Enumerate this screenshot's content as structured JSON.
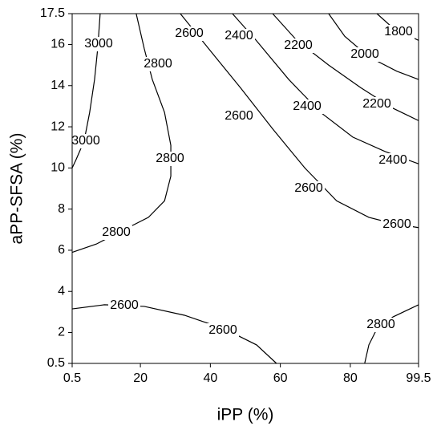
{
  "chart_data": {
    "type": "contour",
    "x_label": "iPP (%)",
    "y_label": "aPP-SFSA (%)",
    "xlim": [
      0.5,
      99.5
    ],
    "ylim": [
      0.5,
      17.5
    ],
    "xticks": [
      0.5,
      20,
      40,
      60,
      80,
      99.5
    ],
    "yticks": [
      0.5,
      2,
      4,
      6,
      8,
      10,
      12,
      14,
      16,
      17.5
    ],
    "color": "#000000",
    "contours": [
      {
        "level": 3000,
        "x": [
          8.5,
          7.8,
          6.9,
          5.5,
          3.9,
          1.6,
          0.5
        ],
        "y": [
          17.5,
          15.8,
          14.3,
          12.7,
          11.3,
          10.4,
          10.0
        ]
      },
      {
        "level": 2800,
        "x": [
          18.8,
          21.1,
          23.4,
          26.9,
          28.7,
          28.7,
          26.9,
          22.3,
          14.2,
          7.4,
          0.5
        ],
        "y": [
          17.5,
          15.8,
          14.3,
          12.7,
          11.1,
          9.6,
          8.4,
          7.6,
          6.9,
          6.3,
          5.9
        ]
      },
      {
        "level": 2600,
        "x": [
          31.4,
          39.5,
          48.6,
          57.8,
          67.0,
          76.1,
          85.3,
          92.2,
          99.5
        ],
        "y": [
          17.5,
          15.8,
          13.9,
          11.9,
          10.0,
          8.4,
          7.6,
          7.3,
          7.1
        ]
      },
      {
        "level": 2400,
        "x": [
          46.3,
          53.1,
          62.4,
          71.5,
          80.7,
          89.9,
          99.5
        ],
        "y": [
          17.5,
          16.2,
          14.3,
          12.7,
          11.5,
          10.8,
          10.2
        ]
      },
      {
        "level": 2200,
        "x": [
          57.8,
          64.7,
          73.8,
          83.0,
          92.2,
          99.5
        ],
        "y": [
          17.5,
          16.2,
          15.0,
          13.9,
          12.9,
          12.3
        ]
      },
      {
        "level": 2000,
        "x": [
          73.8,
          78.4,
          85.3,
          93.3,
          99.5
        ],
        "y": [
          17.5,
          16.4,
          15.4,
          14.7,
          14.3
        ]
      },
      {
        "level": 1800,
        "x": [
          87.6,
          92.2,
          99.5
        ],
        "y": [
          17.5,
          16.8,
          16.2
        ]
      },
      {
        "level": 2600,
        "x": [
          0.5,
          9.7,
          21.1,
          32.6,
          44.0,
          53.2,
          58.9
        ],
        "y": [
          3.15,
          3.35,
          3.27,
          2.84,
          2.18,
          1.4,
          0.5
        ]
      },
      {
        "level": 2800,
        "x": [
          84.1,
          85.3,
          87.6,
          92.2,
          99.5
        ],
        "y": [
          0.5,
          1.4,
          2.18,
          2.76,
          3.35
        ]
      }
    ]
  }
}
